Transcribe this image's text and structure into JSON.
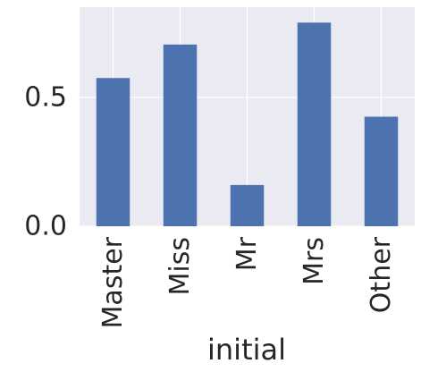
{
  "chart_data": {
    "type": "bar",
    "categories": [
      "Master",
      "Miss",
      "Mr",
      "Mrs",
      "Other"
    ],
    "values": [
      0.575,
      0.705,
      0.16,
      0.79,
      0.425
    ],
    "xlabel": "initial",
    "ylabel": "",
    "ylim": [
      0,
      0.85
    ],
    "yticks": [
      0.0,
      0.5
    ],
    "ytick_labels": [
      "0.0",
      "0.5"
    ],
    "grid": true,
    "colors": {
      "bar": "#4c72b0",
      "plot_background": "#eaeaf2",
      "grid": "#ffffff",
      "text": "#262626"
    }
  }
}
